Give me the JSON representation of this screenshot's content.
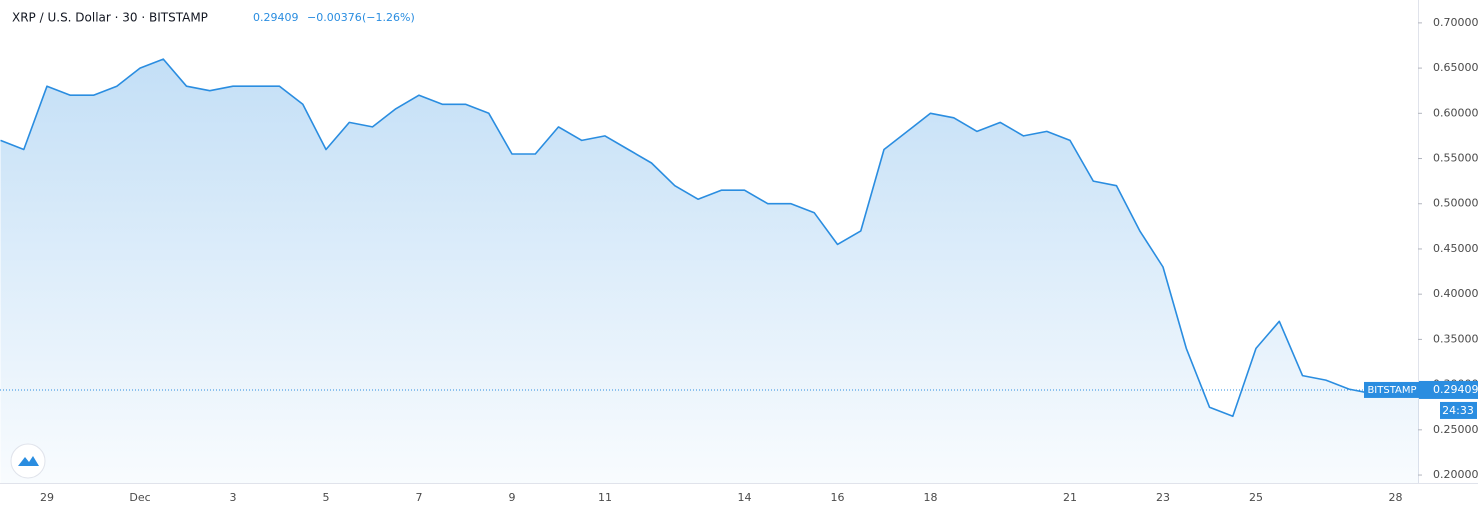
{
  "chart_data": {
    "type": "area",
    "title": "XRP / U.S. Dollar · 30 · BITSTAMP",
    "last": 0.29409,
    "change": {
      "value": -0.00376,
      "label": "−0.00376"
    },
    "change_pct": {
      "value": -1.26,
      "label": "(−1.26%)"
    },
    "badge": "BITSTAMP",
    "countdown": "24:33",
    "categories": [
      null,
      null,
      "29",
      null,
      null,
      null,
      "Dec",
      null,
      null,
      null,
      "3",
      null,
      null,
      null,
      "5",
      null,
      null,
      null,
      "7",
      null,
      null,
      null,
      "9",
      null,
      null,
      null,
      "11",
      null,
      null,
      null,
      null,
      null,
      "14",
      null,
      null,
      null,
      "16",
      null,
      null,
      null,
      "18",
      null,
      null,
      null,
      null,
      null,
      "21",
      null,
      null,
      null,
      "23",
      null,
      null,
      null,
      "25",
      null,
      null,
      null,
      null,
      null,
      "28",
      null
    ],
    "series": [
      {
        "color": "#2a8de0",
        "values": [
          0.57,
          0.56,
          0.63,
          0.62,
          0.62,
          0.63,
          0.65,
          0.66,
          0.63,
          0.625,
          0.63,
          0.63,
          0.63,
          0.61,
          0.56,
          0.59,
          0.585,
          0.605,
          0.62,
          0.61,
          0.61,
          0.6,
          0.555,
          0.555,
          0.585,
          0.57,
          0.575,
          0.56,
          0.545,
          0.52,
          0.505,
          0.515,
          0.515,
          0.5,
          0.5,
          0.49,
          0.455,
          0.47,
          0.56,
          0.58,
          0.6,
          0.595,
          0.58,
          0.59,
          0.575,
          0.58,
          0.57,
          0.525,
          0.52,
          0.47,
          0.43,
          0.34,
          0.275,
          0.265,
          0.34,
          0.37,
          0.31,
          0.305,
          0.295,
          0.29,
          0.29,
          0.294
        ]
      }
    ],
    "ylim": [
      0.1912,
      0.7253
    ],
    "yticks": [
      {
        "value": 0.2,
        "label": "0.20000"
      },
      {
        "value": 0.25,
        "label": "0.25000"
      },
      {
        "value": 0.3,
        "label": "0.30000"
      },
      {
        "value": 0.35,
        "label": "0.35000"
      },
      {
        "value": 0.4,
        "label": "0.40000"
      },
      {
        "value": 0.45,
        "label": "0.45000"
      },
      {
        "value": 0.5,
        "label": "0.50000"
      },
      {
        "value": 0.55,
        "label": "0.55000"
      },
      {
        "value": 0.6,
        "label": "0.60000"
      },
      {
        "value": 0.65,
        "label": "0.65000"
      },
      {
        "value": 0.7,
        "label": "0.70000"
      }
    ],
    "grid": false
  }
}
